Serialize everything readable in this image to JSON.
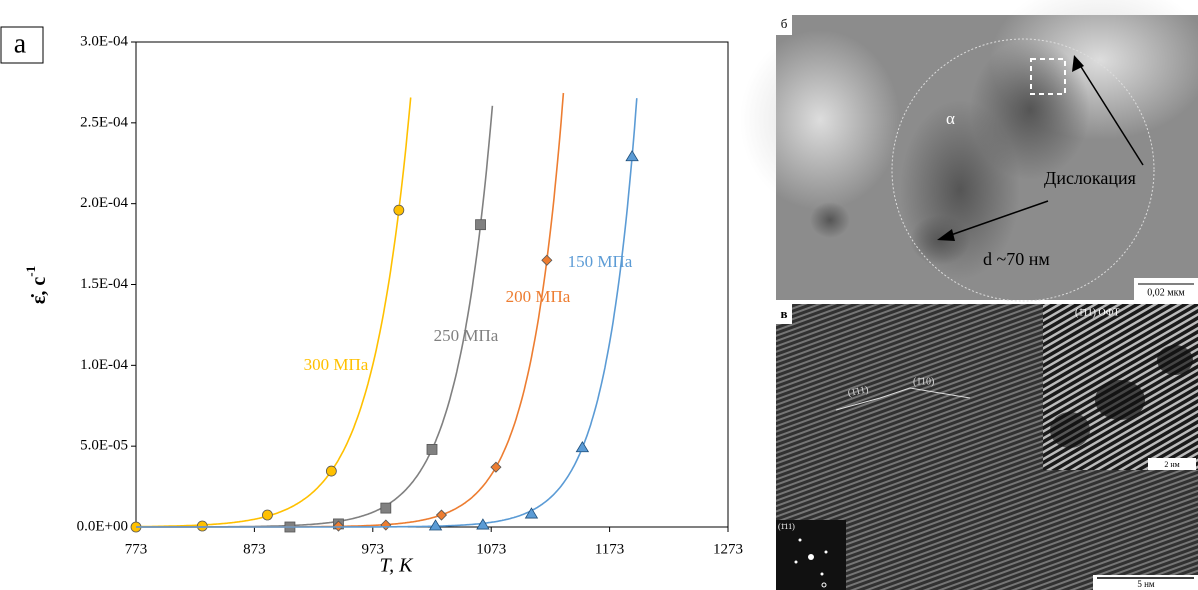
{
  "chart_data": {
    "type": "scatter",
    "panel_label": "a",
    "xlabel": "T, K",
    "ylabel": "ε̇, с",
    "ylabel_sup": "-1",
    "xlim": [
      773,
      1273
    ],
    "xticks": [
      773,
      873,
      973,
      1073,
      1173,
      1273
    ],
    "ylim": [
      0,
      0.0003
    ],
    "yticks": [
      {
        "value": 0,
        "label": "0.0E+00"
      },
      {
        "value": 5e-05,
        "label": "5.0E-05"
      },
      {
        "value": 0.0001,
        "label": "1.0E-04"
      },
      {
        "value": 0.00015,
        "label": "1.5E-04"
      },
      {
        "value": 0.0002,
        "label": "2.0E-04"
      },
      {
        "value": 0.00025,
        "label": "2.5E-04"
      },
      {
        "value": 0.0003,
        "label": "3.0E-04"
      }
    ],
    "series": [
      {
        "name": "300 МПа",
        "color": "#FFC000",
        "marker": "circle",
        "x": [
          773,
          829,
          884,
          938,
          995
        ],
        "values": [
          0,
          6e-07,
          7.4e-06,
          3.46e-05,
          0.000196
        ]
      },
      {
        "name": "250 МПа",
        "color": "#808080",
        "marker": "square",
        "x": [
          903,
          944,
          984,
          1023,
          1064
        ],
        "values": [
          0,
          1.9e-06,
          1.17e-05,
          4.8e-05,
          0.000187
        ]
      },
      {
        "name": "200 МПа",
        "color": "#ED7D31",
        "marker": "diamond",
        "x": [
          944,
          984,
          1031,
          1077,
          1120
        ],
        "values": [
          6e-07,
          1.2e-06,
          7.4e-06,
          3.7e-05,
          0.000165
        ]
      },
      {
        "name": "150 МПа",
        "color": "#5B9BD5",
        "marker": "triangle",
        "x": [
          1026,
          1066,
          1107,
          1150,
          1192
        ],
        "values": [
          6e-07,
          1.2e-06,
          8e-06,
          4.9e-05,
          0.000229
        ]
      }
    ]
  },
  "panel_b": {
    "label": "б",
    "phase": "α",
    "arrow_label": "Дислокация",
    "size_label": "d ~70 нм",
    "scale": "0,02 мкм"
  },
  "panel_c": {
    "label": "в",
    "plane_1": "(1̄11)",
    "plane_2": "(1̄10)",
    "inset_title": "(1̄11) ОФТ",
    "inset_scale": "2 нм",
    "fft_label": "(1̄11)",
    "scale": "5 нм"
  }
}
